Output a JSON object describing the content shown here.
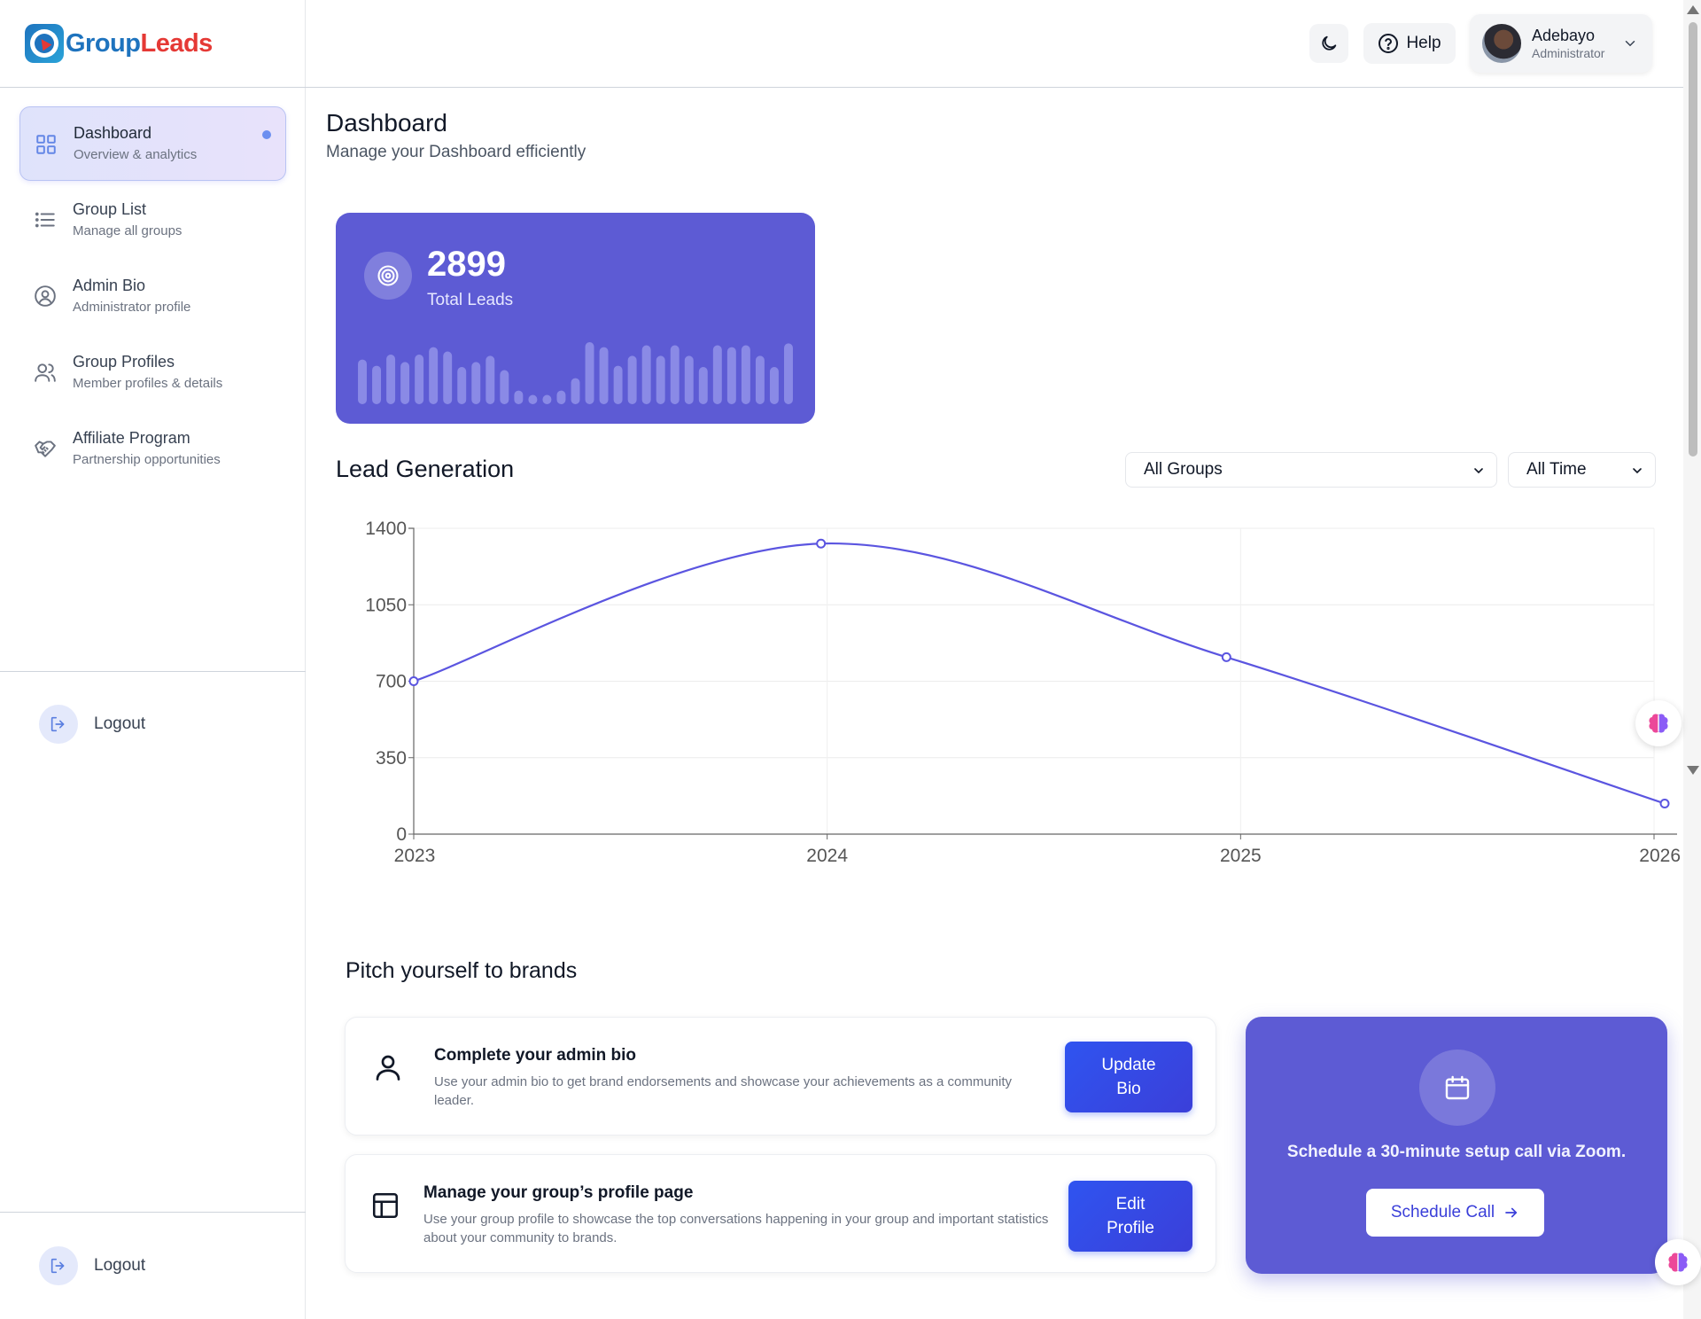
{
  "brand": {
    "name_part1": "Group",
    "name_part2": "Leads"
  },
  "sidebar": {
    "items": [
      {
        "title": "Dashboard",
        "subtitle": "Overview & analytics",
        "icon": "grid-icon",
        "active": true
      },
      {
        "title": "Group List",
        "subtitle": "Manage all groups",
        "icon": "list-icon"
      },
      {
        "title": "Admin Bio",
        "subtitle": "Administrator profile",
        "icon": "user-circle-icon"
      },
      {
        "title": "Group Profiles",
        "subtitle": "Member profiles & details",
        "icon": "users-icon"
      },
      {
        "title": "Affiliate Program",
        "subtitle": "Partnership opportunities",
        "icon": "handshake-icon"
      }
    ],
    "logout_label": "Logout",
    "logout_label_bottom": "Logout"
  },
  "header": {
    "theme_icon": "moon-icon",
    "help_label": "Help",
    "user": {
      "name": "Adebayo",
      "role": "Administrator"
    }
  },
  "page": {
    "title": "Dashboard",
    "subtitle": "Manage your Dashboard efficiently"
  },
  "stat": {
    "value": "2899",
    "label": "Total Leads",
    "sparkline": [
      0.72,
      0.62,
      0.8,
      0.68,
      0.8,
      0.92,
      0.85,
      0.6,
      0.68,
      0.78,
      0.55,
      0.22,
      0.15,
      0.15,
      0.22,
      0.42,
      1.0,
      0.92,
      0.62,
      0.78,
      0.95,
      0.78,
      0.95,
      0.78,
      0.6,
      0.95,
      0.92,
      0.95,
      0.78,
      0.6,
      0.98
    ],
    "colors": {
      "card": "#5d5bd4",
      "bar": "#8a8ae6"
    }
  },
  "lead_generation": {
    "title": "Lead Generation",
    "group_filter": "All Groups",
    "time_filter": "All Time"
  },
  "chart_data": {
    "type": "line",
    "x": [
      "2023",
      "2024",
      "2025",
      "2026"
    ],
    "series": [
      {
        "values": [
          700,
          1330,
          810,
          140
        ],
        "color": "#5b55e0"
      }
    ],
    "yticks": [
      0,
      350,
      700,
      1050,
      1400
    ],
    "ylim": [
      0,
      1400
    ],
    "grid": true
  },
  "pitch": {
    "title": "Pitch yourself to brands",
    "cards": [
      {
        "title": "Complete your admin bio",
        "description": "Use your admin bio to get brand endorsements and showcase your achievements as a community leader.",
        "button_line1": "Update",
        "button_line2": "Bio"
      },
      {
        "title": "Manage your group’s profile page",
        "description": "Use your group profile to showcase the top conversations happening in your group and important statistics about your community to brands.",
        "button_line1": "Edit",
        "button_line2": "Profile"
      }
    ],
    "schedule": {
      "text": "Schedule a 30-minute setup call via Zoom.",
      "button": "Schedule Call"
    }
  }
}
